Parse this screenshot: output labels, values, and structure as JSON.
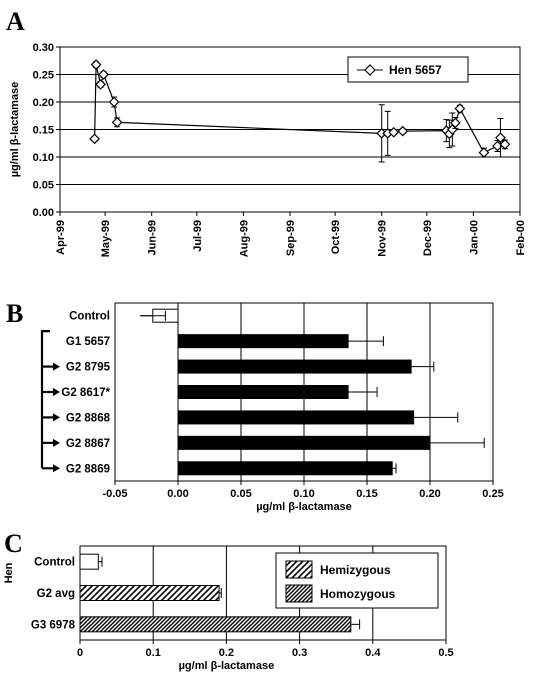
{
  "chart_data": [
    {
      "panel": "A",
      "type": "scatter",
      "ylabel": "µg/ml β-lactamase",
      "xlabel": "",
      "ylim": [
        0,
        0.3
      ],
      "yticks": [
        "0.00",
        "0.05",
        "0.10",
        "0.15",
        "0.20",
        "0.25",
        "0.30"
      ],
      "xlim": [
        "1999-04-01",
        "2000-02-01"
      ],
      "xticks": [
        "Apr-99",
        "May-99",
        "Jun-99",
        "Jul-99",
        "Aug-99",
        "Sep-99",
        "Oct-99",
        "Nov-99",
        "Dec-99",
        "Jan-00",
        "Feb-00"
      ],
      "grid": "horizontal",
      "legend_position": "top-right",
      "series": [
        {
          "name": "Hen 5657",
          "points": [
            {
              "x": "1999-04-24",
              "y": 0.133,
              "err": 0.004
            },
            {
              "x": "1999-04-25",
              "y": 0.268,
              "err": 0.005
            },
            {
              "x": "1999-04-28",
              "y": 0.232,
              "err": 0.005
            },
            {
              "x": "1999-04-30",
              "y": 0.25,
              "err": 0.005
            },
            {
              "x": "1999-05-07",
              "y": 0.2,
              "err": 0.009
            },
            {
              "x": "1999-05-09",
              "y": 0.163,
              "err": 0.008
            },
            {
              "x": "1999-11-01",
              "y": 0.143,
              "err": 0.052
            },
            {
              "x": "1999-11-05",
              "y": 0.143,
              "err": 0.04
            },
            {
              "x": "1999-11-09",
              "y": 0.145,
              "err": 0.004
            },
            {
              "x": "1999-11-15",
              "y": 0.147,
              "err": 0.004
            },
            {
              "x": "1999-12-14",
              "y": 0.148,
              "err": 0.02
            },
            {
              "x": "1999-12-16",
              "y": 0.142,
              "err": 0.025
            },
            {
              "x": "1999-12-18",
              "y": 0.15,
              "err": 0.03
            },
            {
              "x": "1999-12-20",
              "y": 0.162,
              "err": 0.01
            },
            {
              "x": "1999-12-23",
              "y": 0.188,
              "err": 0.006
            },
            {
              "x": "2000-01-08",
              "y": 0.108,
              "err": 0.008
            },
            {
              "x": "2000-01-17",
              "y": 0.12,
              "err": 0.01
            },
            {
              "x": "2000-01-19",
              "y": 0.135,
              "err": 0.035
            },
            {
              "x": "2000-01-22",
              "y": 0.123,
              "err": 0.008
            }
          ]
        }
      ]
    },
    {
      "panel": "B",
      "type": "bar",
      "orientation": "horizontal",
      "xlabel": "µg/ml β-lactamase",
      "ylabel": "",
      "xlim": [
        -0.05,
        0.25
      ],
      "xticks": [
        "-0.05",
        "0.00",
        "0.05",
        "0.10",
        "0.15",
        "0.20",
        "0.25"
      ],
      "grid": "vertical",
      "categories": [
        "Control",
        "G1 5657",
        "G2 8795",
        "G2 8617*",
        "G2 8868",
        "G2 8867",
        "G2 8869"
      ],
      "values": [
        -0.02,
        0.135,
        0.185,
        0.135,
        0.187,
        0.2,
        0.17
      ],
      "errors": [
        0.01,
        0.028,
        0.018,
        0.023,
        0.035,
        0.043,
        0.003
      ],
      "fills": [
        "#ffffff",
        "#000000",
        "#000000",
        "#000000",
        "#000000",
        "#000000",
        "#000000"
      ]
    },
    {
      "panel": "C",
      "type": "bar",
      "orientation": "horizontal",
      "xlabel": "µg/ml β-lactamase",
      "ylabel": "Hen",
      "xlim": [
        0,
        0.5
      ],
      "xticks": [
        "0",
        "0.1",
        "0.2",
        "0.3",
        "0.4",
        "0.5"
      ],
      "grid": "vertical",
      "legend_position": "top-right",
      "legend": [
        "Hemizygous",
        "Homozygous"
      ],
      "categories": [
        "Control",
        "G2 avg",
        "G3 6978"
      ],
      "values": [
        0.025,
        0.19,
        0.37
      ],
      "errors": [
        0.005,
        0.003,
        0.012
      ],
      "patterns": [
        "none",
        "Hemizygous",
        "Homozygous"
      ]
    }
  ]
}
